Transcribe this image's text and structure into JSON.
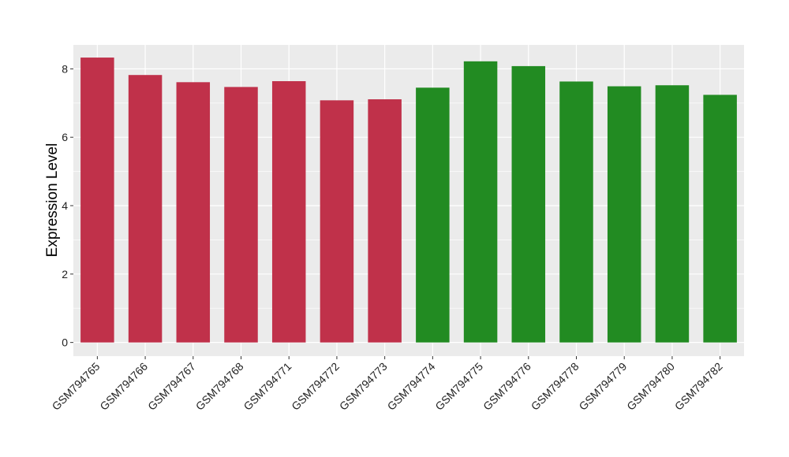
{
  "chart_data": {
    "type": "bar",
    "title": "",
    "xlabel": "",
    "ylabel": "Expression Level",
    "ylim": [
      -0.4,
      8.7
    ],
    "yticks": [
      0,
      2,
      4,
      6,
      8
    ],
    "grid": true,
    "legend": "none",
    "categories": [
      "GSM794765",
      "GSM794766",
      "GSM794767",
      "GSM794768",
      "GSM794771",
      "GSM794772",
      "GSM794773",
      "GSM794774",
      "GSM794775",
      "GSM794776",
      "GSM794778",
      "GSM794779",
      "GSM794780",
      "GSM794782"
    ],
    "values": [
      8.33,
      7.82,
      7.61,
      7.47,
      7.64,
      7.08,
      7.11,
      7.45,
      8.22,
      8.08,
      7.63,
      7.49,
      7.52,
      7.24
    ],
    "bar_colors": [
      "#C0314A",
      "#C0314A",
      "#C0314A",
      "#C0314A",
      "#C0314A",
      "#C0314A",
      "#C0314A",
      "#228B22",
      "#228B22",
      "#228B22",
      "#228B22",
      "#228B22",
      "#228B22",
      "#228B22"
    ],
    "colors": {
      "panel": "#EBEBEB",
      "grid": "#FFFFFF",
      "tick": "#333333"
    }
  }
}
